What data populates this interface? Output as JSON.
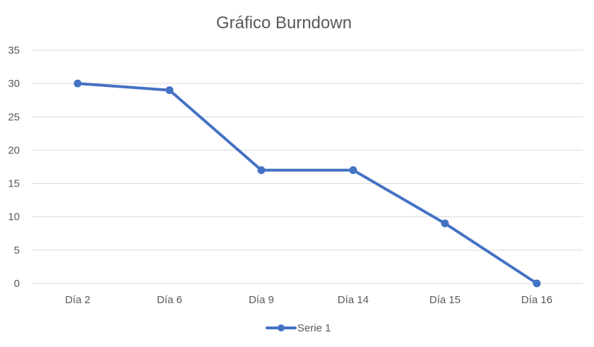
{
  "chart_data": {
    "type": "line",
    "title": "Gráfico Burndown",
    "xlabel": "",
    "ylabel": "",
    "categories": [
      "Día 2",
      "Día 6",
      "Día 9",
      "Día 14",
      "Día 15",
      "Día 16"
    ],
    "series": [
      {
        "name": "Serie 1",
        "values": [
          30,
          29,
          17,
          17,
          9,
          0
        ],
        "color": "#4472c4"
      }
    ],
    "ylim": [
      0,
      35
    ],
    "yticks": [
      0,
      5,
      10,
      15,
      20,
      25,
      30,
      35
    ],
    "grid": true,
    "legend": "bottom-center"
  }
}
